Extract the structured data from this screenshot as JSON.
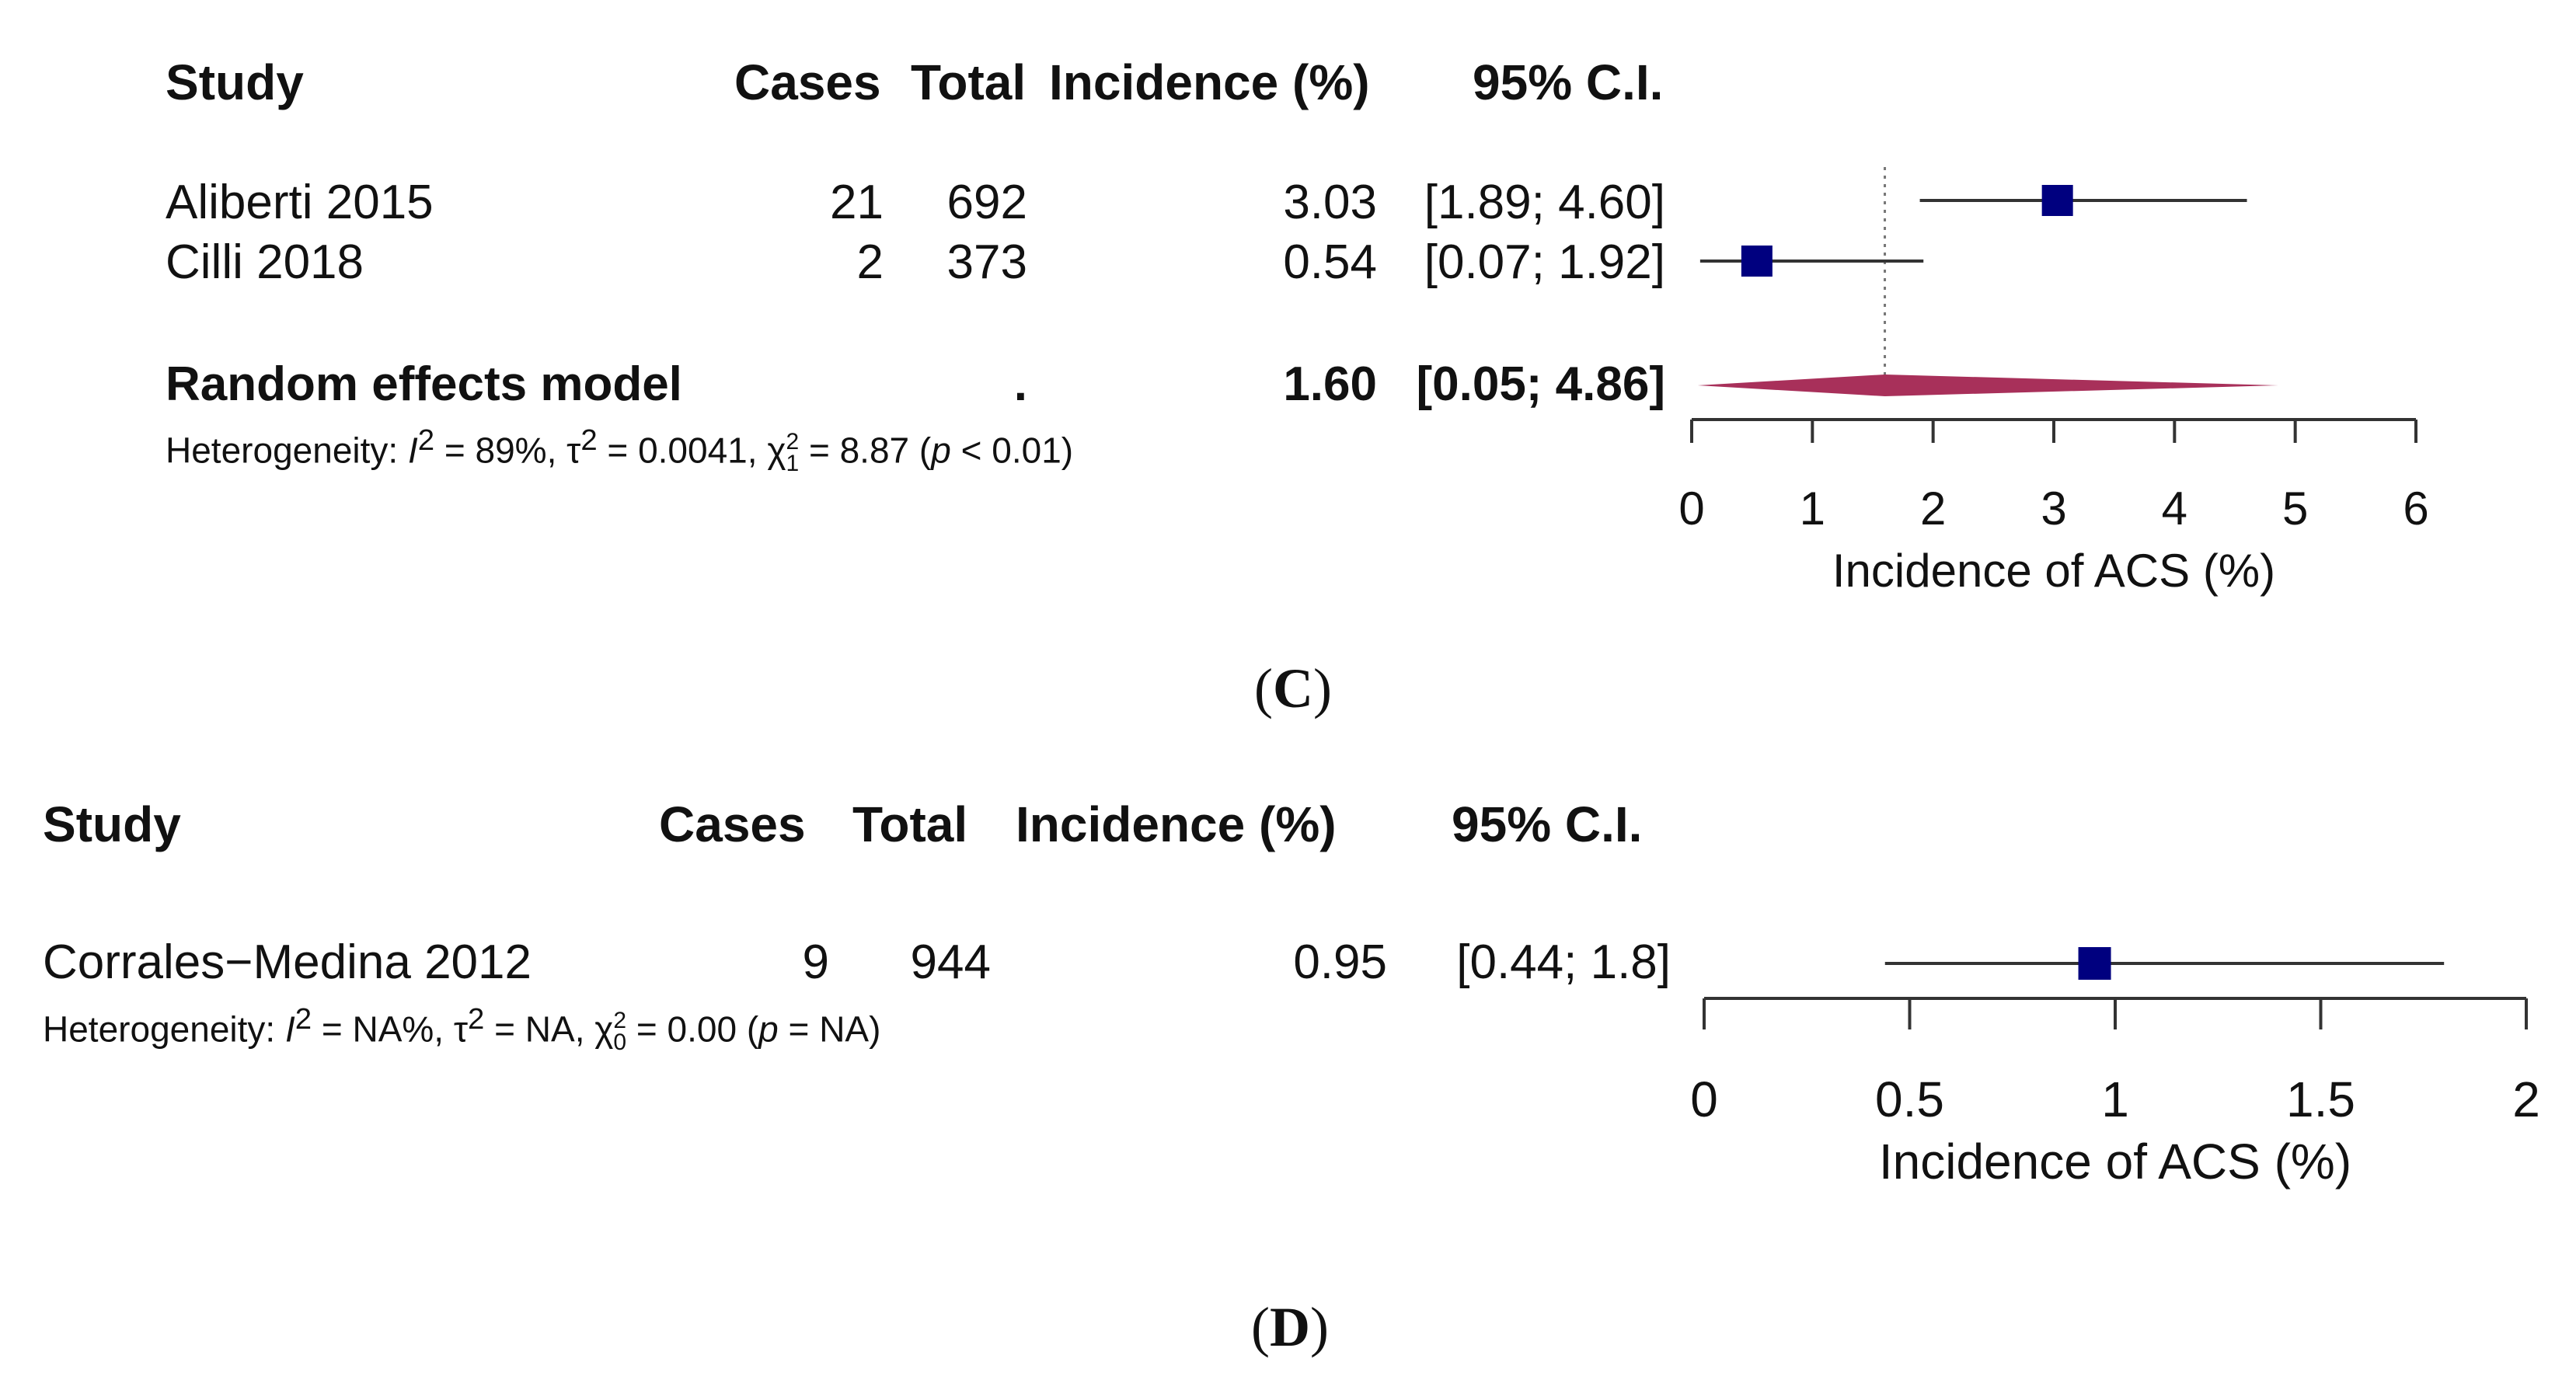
{
  "chart_data": [
    {
      "type": "forest",
      "panel_label": "C",
      "headers": {
        "study": "Study",
        "cases": "Cases",
        "total": "Total",
        "incidence": "Incidence (%)",
        "ci": "95% C.I."
      },
      "studies": [
        {
          "name": "Aliberti 2015",
          "cases": "21",
          "total": "692",
          "incidence_label": "3.03",
          "ci_label": "[1.89; 4.60]",
          "estimate": 3.03,
          "lower": 1.89,
          "upper": 4.6
        },
        {
          "name": "Cilli 2018",
          "cases": "2",
          "total": "373",
          "incidence_label": "0.54",
          "ci_label": "[0.07; 1.92]",
          "estimate": 0.54,
          "lower": 0.07,
          "upper": 1.92
        }
      ],
      "pooled": {
        "name": "Random effects model",
        "total": ".",
        "incidence_label": "1.60",
        "ci_label": "[0.05; 4.86]",
        "estimate": 1.6,
        "lower": 0.05,
        "upper": 4.86
      },
      "heterogeneity": {
        "prefix": "Heterogeneity: ",
        "i2_sym": "I",
        "i2_exp": "2",
        "i2_val": " = 89%, ",
        "tau_sym": "τ",
        "tau_exp": "2",
        "tau_val": " = 0.0041, ",
        "chi_sym": "χ",
        "chi_exp": "2",
        "chi_sub": "1",
        "chi_val": " = 8.87 (",
        "p_sym": "p",
        "p_val": " < 0.01)"
      },
      "xaxis": {
        "label": "Incidence of ACS (%)",
        "min": 0,
        "max": 6,
        "ticks": [
          0,
          1,
          2,
          3,
          4,
          5,
          6
        ],
        "tick_labels": [
          "0",
          "1",
          "2",
          "3",
          "4",
          "5",
          "6"
        ]
      },
      "reference_line": 1.6
    },
    {
      "type": "forest",
      "panel_label": "D",
      "headers": {
        "study": "Study",
        "cases": "Cases",
        "total": "Total",
        "incidence": "Incidence (%)",
        "ci": "95% C.I."
      },
      "studies": [
        {
          "name": "Corrales−Medina 2012",
          "cases": "9",
          "total": "944",
          "incidence_label": "0.95",
          "ci_label": "[0.44; 1.8]",
          "estimate": 0.95,
          "lower": 0.44,
          "upper": 1.8
        }
      ],
      "heterogeneity": {
        "prefix": "Heterogeneity: ",
        "i2_sym": "I",
        "i2_exp": "2",
        "i2_val": " = NA%, ",
        "tau_sym": "τ",
        "tau_exp": "2",
        "tau_val": " = NA, ",
        "chi_sym": "χ",
        "chi_exp": "2",
        "chi_sub": "0",
        "chi_val": " = 0.00 (",
        "p_sym": "p",
        "p_val": " = NA)"
      },
      "xaxis": {
        "label": "Incidence of ACS (%)",
        "min": 0,
        "max": 2,
        "ticks": [
          0,
          0.5,
          1,
          1.5,
          2
        ],
        "tick_labels": [
          "0",
          "0.5",
          "1",
          "1.5",
          "2"
        ]
      }
    }
  ],
  "colors": {
    "square": "#00007f",
    "diamond": "#a8305a",
    "line": "#333333",
    "refline": "#777777"
  }
}
